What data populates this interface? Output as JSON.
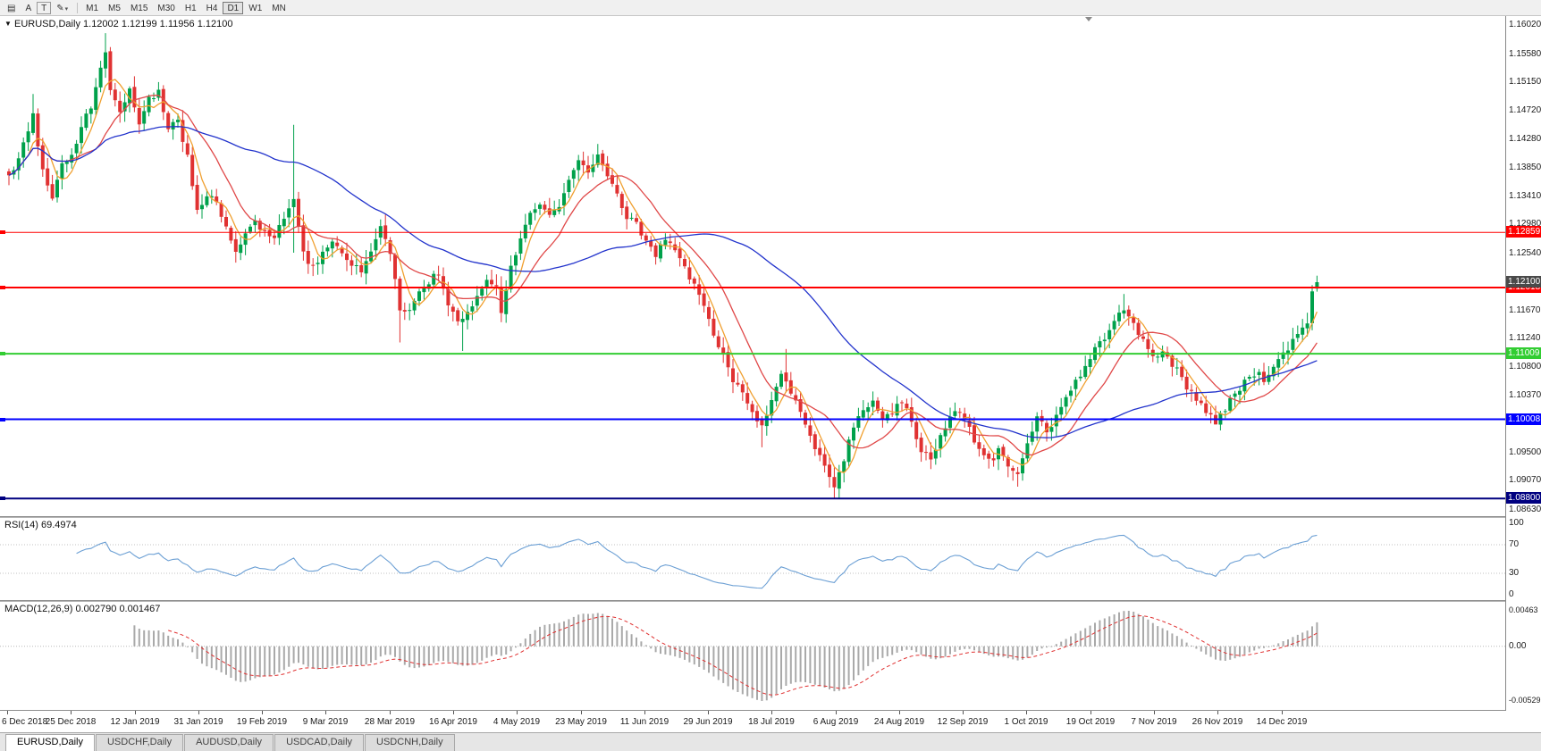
{
  "toolbar": {
    "icons": [
      {
        "name": "chart-window-icon",
        "glyph": "▤",
        "boxed": false,
        "caret": false
      },
      {
        "name": "arrow-tool-icon",
        "glyph": "A",
        "boxed": false,
        "caret": false
      },
      {
        "name": "text-tool-icon",
        "glyph": "T",
        "boxed": true,
        "caret": false
      },
      {
        "name": "drawing-tool-icon",
        "glyph": "✎",
        "boxed": false,
        "caret": true
      }
    ],
    "timeframes": [
      {
        "label": "M1",
        "active": false
      },
      {
        "label": "M5",
        "active": false
      },
      {
        "label": "M15",
        "active": false
      },
      {
        "label": "M30",
        "active": false
      },
      {
        "label": "H1",
        "active": false
      },
      {
        "label": "H4",
        "active": false
      },
      {
        "label": "D1",
        "active": true
      },
      {
        "label": "W1",
        "active": false
      },
      {
        "label": "MN",
        "active": false
      }
    ]
  },
  "chart": {
    "info": {
      "dropdown_glyph": "▼",
      "symbol": "EURUSD,Daily",
      "open": "1.12002",
      "high": "1.12199",
      "low": "1.11956",
      "close": "1.12100"
    },
    "price_axis_ticks": [
      {
        "label": "1.16020",
        "value": 1.1602
      },
      {
        "label": "1.15580",
        "value": 1.1558
      },
      {
        "label": "1.15150",
        "value": 1.1515
      },
      {
        "label": "1.14720",
        "value": 1.1472
      },
      {
        "label": "1.14280",
        "value": 1.1428
      },
      {
        "label": "1.13850",
        "value": 1.1385
      },
      {
        "label": "1.13410",
        "value": 1.1341
      },
      {
        "label": "1.12980",
        "value": 1.1298
      },
      {
        "label": "1.12540",
        "value": 1.1254
      },
      {
        "label": "1.11670",
        "value": 1.1167
      },
      {
        "label": "1.11240",
        "value": 1.1124
      },
      {
        "label": "1.10800",
        "value": 1.108
      },
      {
        "label": "1.10370",
        "value": 1.1037
      },
      {
        "label": "1.09500",
        "value": 1.095
      },
      {
        "label": "1.09070",
        "value": 1.0907
      },
      {
        "label": "1.08630",
        "value": 1.0863
      }
    ],
    "current_price": {
      "label": "1.12100",
      "value": 1.121,
      "bg": "#4a4a4a"
    },
    "hlines": [
      {
        "label": "1.12859",
        "value": 1.12859,
        "color": "#ff0000",
        "width": 1
      },
      {
        "label": "1.12018",
        "value": 1.12018,
        "color": "#ff0000",
        "width": 2
      },
      {
        "label": "1.11009",
        "value": 1.11009,
        "color": "#32cd32",
        "width": 2
      },
      {
        "label": "1.10008",
        "value": 1.10008,
        "color": "#0000ff",
        "width": 2
      },
      {
        "label": "1.08800",
        "value": 1.088,
        "color": "#000080",
        "width": 2
      }
    ],
    "date_ticks": [
      {
        "label": "6 Dec 2018",
        "k": 0
      },
      {
        "label": "25 Dec 2018",
        "k": 1
      },
      {
        "label": "12 Jan 2019",
        "k": 2
      },
      {
        "label": "31 Jan 2019",
        "k": 3
      },
      {
        "label": "19 Feb 2019",
        "k": 4
      },
      {
        "label": "9 Mar 2019",
        "k": 5
      },
      {
        "label": "28 Mar 2019",
        "k": 6
      },
      {
        "label": "16 Apr 2019",
        "k": 7
      },
      {
        "label": "4 May 2019",
        "k": 8
      },
      {
        "label": "23 May 2019",
        "k": 9
      },
      {
        "label": "11 Jun 2019",
        "k": 10
      },
      {
        "label": "29 Jun 2019",
        "k": 11
      },
      {
        "label": "18 Jul 2019",
        "k": 12
      },
      {
        "label": "6 Aug 2019",
        "k": 13
      },
      {
        "label": "24 Aug 2019",
        "k": 14
      },
      {
        "label": "12 Sep 2019",
        "k": 15
      },
      {
        "label": "1 Oct 2019",
        "k": 16
      },
      {
        "label": "19 Oct 2019",
        "k": 17
      },
      {
        "label": "7 Nov 2019",
        "k": 18
      },
      {
        "label": "26 Nov 2019",
        "k": 19
      },
      {
        "label": "14 Dec 2019",
        "k": 20
      }
    ]
  },
  "rsi": {
    "title": "RSI(14)",
    "value": "69.4974",
    "line_color": "#6b9fd4",
    "levels": [
      {
        "label": "100",
        "v": 100
      },
      {
        "label": "70",
        "v": 70
      },
      {
        "label": "30",
        "v": 30
      },
      {
        "label": "0",
        "v": 0
      }
    ]
  },
  "macd": {
    "title": "MACD(12,26,9)",
    "value_main": "0.002790",
    "value_signal": "0.001467",
    "hist_color": "#a9a9a9",
    "signal_color": "#e03030",
    "axis_top": "0.00463",
    "axis_zero": "0.00",
    "axis_bottom": "-0.00529"
  },
  "tabs": [
    {
      "label": "EURUSD,Daily",
      "active": true
    },
    {
      "label": "USDCHF,Daily",
      "active": false
    },
    {
      "label": "AUDUSD,Daily",
      "active": false
    },
    {
      "label": "USDCAD,Daily",
      "active": false
    },
    {
      "label": "USDCNH,Daily",
      "active": false
    }
  ],
  "chart_data": {
    "type": "candlestick",
    "symbol": "EURUSD",
    "timeframe": "Daily",
    "bars": 272,
    "price_range": [
      1.0853,
      1.1616
    ],
    "up_color": "#00a14b",
    "down_color": "#e03232",
    "last_bar": {
      "open": 1.12002,
      "high": 1.12199,
      "low": 1.11956,
      "close": 1.121
    },
    "close_anchors": [
      [
        0,
        1.137
      ],
      [
        2,
        1.1395
      ],
      [
        4,
        1.144
      ],
      [
        5,
        1.1462
      ],
      [
        7,
        1.138
      ],
      [
        9,
        1.134
      ],
      [
        11,
        1.139
      ],
      [
        13,
        1.1408
      ],
      [
        15,
        1.1445
      ],
      [
        17,
        1.148
      ],
      [
        19,
        1.1538
      ],
      [
        20,
        1.1558
      ],
      [
        21,
        1.1502
      ],
      [
        23,
        1.1468
      ],
      [
        25,
        1.1508
      ],
      [
        27,
        1.1456
      ],
      [
        29,
        1.1488
      ],
      [
        31,
        1.1498
      ],
      [
        33,
        1.1442
      ],
      [
        35,
        1.1458
      ],
      [
        37,
        1.14
      ],
      [
        39,
        1.1322
      ],
      [
        41,
        1.1345
      ],
      [
        43,
        1.1336
      ],
      [
        45,
        1.1292
      ],
      [
        47,
        1.1252
      ],
      [
        49,
        1.1282
      ],
      [
        51,
        1.1306
      ],
      [
        53,
        1.1286
      ],
      [
        55,
        1.1272
      ],
      [
        57,
        1.1312
      ],
      [
        59,
        1.1338
      ],
      [
        60,
        1.1292
      ],
      [
        61,
        1.1256
      ],
      [
        63,
        1.123
      ],
      [
        65,
        1.1256
      ],
      [
        67,
        1.1276
      ],
      [
        69,
        1.1252
      ],
      [
        71,
        1.1236
      ],
      [
        73,
        1.1226
      ],
      [
        75,
        1.1262
      ],
      [
        77,
        1.1292
      ],
      [
        79,
        1.1252
      ],
      [
        81,
        1.1172
      ],
      [
        83,
        1.1166
      ],
      [
        85,
        1.1192
      ],
      [
        87,
        1.1212
      ],
      [
        89,
        1.1226
      ],
      [
        91,
        1.1172
      ],
      [
        93,
        1.1152
      ],
      [
        95,
        1.1162
      ],
      [
        97,
        1.1192
      ],
      [
        99,
        1.1216
      ],
      [
        101,
        1.1202
      ],
      [
        102,
        1.1168
      ],
      [
        104,
        1.1232
      ],
      [
        106,
        1.1282
      ],
      [
        108,
        1.1312
      ],
      [
        110,
        1.1332
      ],
      [
        112,
        1.1312
      ],
      [
        114,
        1.1322
      ],
      [
        116,
        1.1366
      ],
      [
        118,
        1.1402
      ],
      [
        120,
        1.1376
      ],
      [
        122,
        1.1406
      ],
      [
        124,
        1.1372
      ],
      [
        126,
        1.1342
      ],
      [
        128,
        1.1312
      ],
      [
        130,
        1.1296
      ],
      [
        132,
        1.1272
      ],
      [
        134,
        1.1252
      ],
      [
        136,
        1.1272
      ],
      [
        138,
        1.1256
      ],
      [
        140,
        1.1232
      ],
      [
        142,
        1.1202
      ],
      [
        144,
        1.1172
      ],
      [
        146,
        1.1132
      ],
      [
        148,
        1.1096
      ],
      [
        150,
        1.1062
      ],
      [
        152,
        1.1036
      ],
      [
        154,
        1.1012
      ],
      [
        156,
        1.0986
      ],
      [
        158,
        1.1032
      ],
      [
        160,
        1.1066
      ],
      [
        162,
        1.1042
      ],
      [
        164,
        1.1012
      ],
      [
        166,
        1.0976
      ],
      [
        168,
        1.0942
      ],
      [
        170,
        1.0912
      ],
      [
        171,
        1.0896
      ],
      [
        173,
        1.0942
      ],
      [
        175,
        1.0992
      ],
      [
        177,
        1.1016
      ],
      [
        179,
        1.1032
      ],
      [
        181,
        1.0996
      ],
      [
        183,
        1.1012
      ],
      [
        185,
        1.1032
      ],
      [
        187,
        1.0992
      ],
      [
        189,
        1.0956
      ],
      [
        191,
        1.0936
      ],
      [
        193,
        1.0976
      ],
      [
        195,
        1.1002
      ],
      [
        197,
        1.1016
      ],
      [
        199,
        1.0986
      ],
      [
        201,
        1.0952
      ],
      [
        203,
        1.0936
      ],
      [
        205,
        1.0952
      ],
      [
        207,
        1.0932
      ],
      [
        209,
        1.0912
      ],
      [
        211,
        1.0962
      ],
      [
        213,
        1.1002
      ],
      [
        215,
        1.0986
      ],
      [
        217,
        1.1002
      ],
      [
        219,
        1.1032
      ],
      [
        221,
        1.1056
      ],
      [
        223,
        1.1082
      ],
      [
        225,
        1.1106
      ],
      [
        227,
        1.1126
      ],
      [
        229,
        1.1152
      ],
      [
        231,
        1.1166
      ],
      [
        233,
        1.1146
      ],
      [
        235,
        1.1122
      ],
      [
        237,
        1.1092
      ],
      [
        239,
        1.1106
      ],
      [
        241,
        1.1086
      ],
      [
        243,
        1.1062
      ],
      [
        245,
        1.1042
      ],
      [
        247,
        1.1022
      ],
      [
        249,
        1.1006
      ],
      [
        250,
        1.0998
      ],
      [
        252,
        1.1018
      ],
      [
        254,
        1.1038
      ],
      [
        256,
        1.1056
      ],
      [
        258,
        1.1072
      ],
      [
        260,
        1.1062
      ],
      [
        262,
        1.1082
      ],
      [
        264,
        1.1098
      ],
      [
        266,
        1.1122
      ],
      [
        267,
        1.1132
      ],
      [
        269,
        1.1152
      ],
      [
        270,
        1.1196
      ],
      [
        271,
        1.121
      ]
    ],
    "spikes": [
      {
        "i": 5,
        "high": 1.1497
      },
      {
        "i": 20,
        "high": 1.159
      },
      {
        "i": 59,
        "high": 1.145,
        "low": 1.1255
      },
      {
        "i": 81,
        "low": 1.1118
      },
      {
        "i": 94,
        "low": 1.1105
      },
      {
        "i": 156,
        "low": 1.0958
      },
      {
        "i": 161,
        "high": 1.1108
      },
      {
        "i": 171,
        "low": 1.0879
      },
      {
        "i": 209,
        "low": 1.0898
      },
      {
        "i": 231,
        "high": 1.1192
      },
      {
        "i": 250,
        "low": 1.0993
      }
    ],
    "moving_averages": [
      {
        "period": 5,
        "color": "#f0a030"
      },
      {
        "period": 13,
        "color": "#e04848"
      },
      {
        "period": 50,
        "color": "#2233cc"
      }
    ],
    "horizontal_levels": [
      1.12859,
      1.12018,
      1.11009,
      1.10008,
      1.088
    ],
    "indicators": [
      {
        "name": "RSI",
        "period": 14,
        "current": 69.4974
      },
      {
        "name": "MACD",
        "fast": 12,
        "slow": 26,
        "signal": 9,
        "current_main": 0.00279,
        "current_signal": 0.001467
      }
    ]
  }
}
